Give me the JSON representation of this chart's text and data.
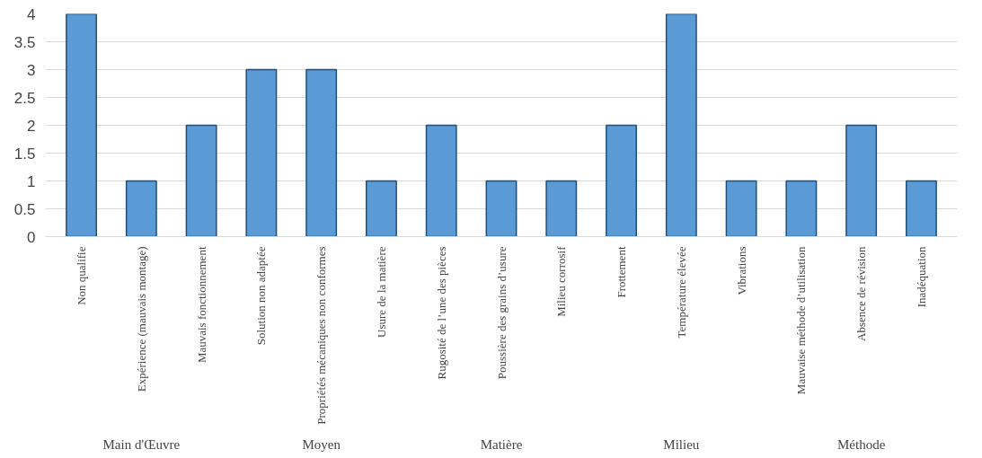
{
  "chart_data": {
    "type": "bar",
    "categories": [
      "Non qualifie",
      "Expérience (mauvais montage)",
      "Mauvais fonctionnement",
      "Solution non adaptée",
      "Propriétés mécaniques non conformes",
      "Usure de la matière",
      "Rugosité de l’une des pièces",
      "Poussière des grains d’usure",
      "Milieu corrosif",
      "Frottement",
      "Température élevée",
      "Vibrations",
      "Mauvaise méthode d’utilisation",
      "Absence de révision",
      "Inadéquation"
    ],
    "values": [
      4,
      1,
      2,
      3,
      3,
      1,
      2,
      1,
      1,
      2,
      4,
      1,
      1,
      2,
      1
    ],
    "color": "#5b9bd5",
    "ylim": [
      0,
      4
    ],
    "yticks": [
      0,
      0.5,
      1,
      1.5,
      2,
      2.5,
      3,
      3.5,
      4
    ],
    "grid": "y",
    "annotations": [
      "Main d'Œuvre",
      "Moyen",
      "Matière",
      "Milieu",
      "Méthode"
    ]
  }
}
